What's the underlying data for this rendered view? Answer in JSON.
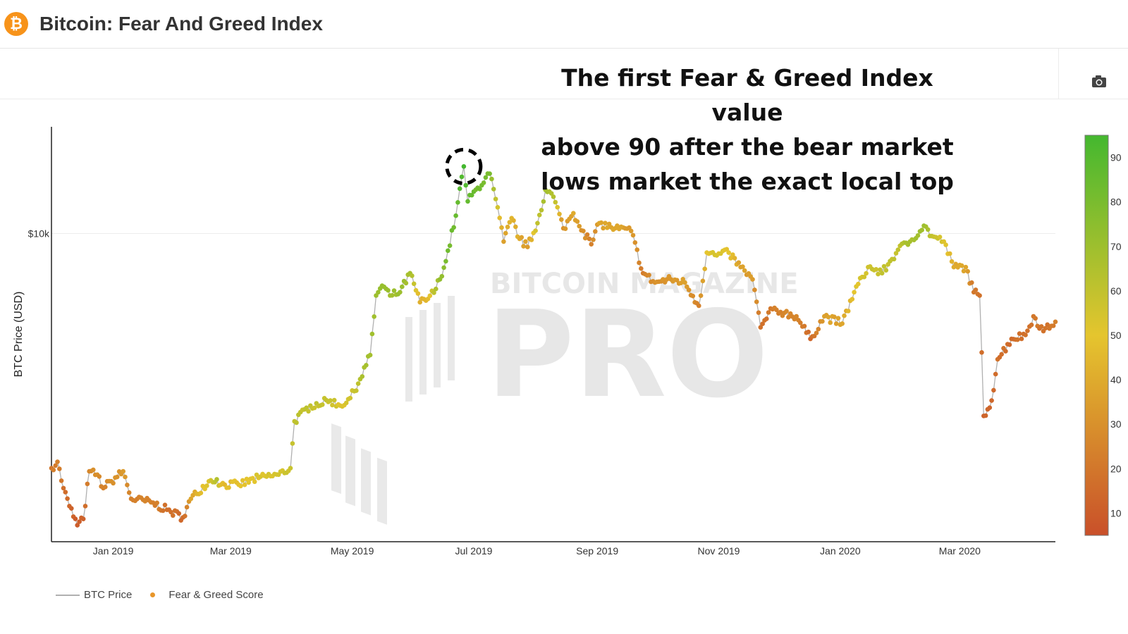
{
  "header": {
    "title": "Bitcoin: Fear And Greed Index",
    "logo_glyph": "₿",
    "logo_icon": "bitcoin-icon"
  },
  "toolbar": {
    "camera_icon": "camera-icon"
  },
  "annotation": {
    "lines": [
      "The first Fear & Greed Index value",
      "above 90 after the bear market",
      "lows market the exact local top"
    ]
  },
  "watermark": {
    "line1": "BITCOIN MAGAZINE",
    "line2": "PRO"
  },
  "legend": {
    "price_label": "BTC Price",
    "score_label": "Fear & Greed Score"
  },
  "colors": {
    "fear": "#c9502a",
    "neutral": "#e5c52e",
    "greed": "#44b82f",
    "price_line": "#b0b0b0"
  },
  "chart_data": {
    "type": "scatter",
    "title": "",
    "ylabel": "BTC Price (USD)",
    "y_scale": "log",
    "y_ticks": [
      {
        "value": 10000,
        "label": "$10k"
      }
    ],
    "x_ticks": [
      "Jan 2019",
      "Mar 2019",
      "May 2019",
      "Jul 2019",
      "Sep 2019",
      "Nov 2019",
      "Jan 2020",
      "Mar 2020"
    ],
    "x_range": [
      "2018-12-01",
      "2020-04-18"
    ],
    "y_range": [
      3100,
      15000
    ],
    "colorbar": {
      "min": 5,
      "max": 95,
      "ticks": [
        10,
        20,
        30,
        40,
        50,
        60,
        70,
        80,
        90
      ]
    },
    "highlight": {
      "date": "2019-06-26",
      "price": 12900,
      "score": 95
    },
    "series": [
      {
        "name": "BTC Price",
        "kind": "line"
      },
      {
        "name": "Fear & Greed Score",
        "kind": "markers",
        "anchors": [
          [
            "2018-12-01",
            4100,
            20
          ],
          [
            "2018-12-04",
            4200,
            24
          ],
          [
            "2018-12-07",
            3800,
            17
          ],
          [
            "2018-12-10",
            3550,
            14
          ],
          [
            "2018-12-14",
            3300,
            10
          ],
          [
            "2018-12-17",
            3380,
            12
          ],
          [
            "2018-12-20",
            4050,
            26
          ],
          [
            "2018-12-24",
            4000,
            30
          ],
          [
            "2018-12-27",
            3800,
            24
          ],
          [
            "2018-12-31",
            3900,
            30
          ],
          [
            "2019-01-06",
            4050,
            34
          ],
          [
            "2019-01-10",
            3650,
            24
          ],
          [
            "2019-01-20",
            3600,
            25
          ],
          [
            "2019-01-28",
            3500,
            18
          ],
          [
            "2019-02-05",
            3400,
            15
          ],
          [
            "2019-02-09",
            3650,
            38
          ],
          [
            "2019-02-18",
            3900,
            52
          ],
          [
            "2019-02-22",
            3930,
            64
          ],
          [
            "2019-02-24",
            3850,
            46
          ],
          [
            "2019-03-05",
            3850,
            48
          ],
          [
            "2019-03-15",
            3950,
            52
          ],
          [
            "2019-03-25",
            4000,
            55
          ],
          [
            "2019-03-31",
            4100,
            58
          ],
          [
            "2019-04-02",
            4900,
            60
          ],
          [
            "2019-04-10",
            5200,
            60
          ],
          [
            "2019-04-20",
            5300,
            58
          ],
          [
            "2019-04-25",
            5200,
            52
          ],
          [
            "2019-04-30",
            5350,
            56
          ],
          [
            "2019-05-05",
            5750,
            64
          ],
          [
            "2019-05-10",
            6300,
            68
          ],
          [
            "2019-05-13",
            7900,
            70
          ],
          [
            "2019-05-16",
            8200,
            72
          ],
          [
            "2019-05-20",
            7900,
            68
          ],
          [
            "2019-05-25",
            8000,
            70
          ],
          [
            "2019-05-30",
            8600,
            68
          ],
          [
            "2019-06-04",
            7700,
            42
          ],
          [
            "2019-06-08",
            7800,
            46
          ],
          [
            "2019-06-12",
            8100,
            66
          ],
          [
            "2019-06-17",
            9000,
            80
          ],
          [
            "2019-06-22",
            10700,
            85
          ],
          [
            "2019-06-26",
            12900,
            95
          ],
          [
            "2019-06-28",
            11300,
            86
          ],
          [
            "2019-07-03",
            11900,
            82
          ],
          [
            "2019-07-09",
            12550,
            80
          ],
          [
            "2019-07-12",
            11400,
            60
          ],
          [
            "2019-07-16",
            9700,
            36
          ],
          [
            "2019-07-20",
            10600,
            44
          ],
          [
            "2019-07-24",
            9800,
            40
          ],
          [
            "2019-07-28",
            9500,
            34
          ],
          [
            "2019-08-02",
            10400,
            60
          ],
          [
            "2019-08-06",
            11800,
            68
          ],
          [
            "2019-08-10",
            11500,
            64
          ],
          [
            "2019-08-15",
            10200,
            30
          ],
          [
            "2019-08-20",
            10800,
            40
          ],
          [
            "2019-08-25",
            10100,
            30
          ],
          [
            "2019-08-29",
            9600,
            24
          ],
          [
            "2019-09-02",
            10400,
            38
          ],
          [
            "2019-09-10",
            10200,
            38
          ],
          [
            "2019-09-18",
            10100,
            34
          ],
          [
            "2019-09-24",
            8600,
            22
          ],
          [
            "2019-09-30",
            8300,
            30
          ],
          [
            "2019-10-08",
            8400,
            32
          ],
          [
            "2019-10-15",
            8300,
            36
          ],
          [
            "2019-10-22",
            7600,
            24
          ],
          [
            "2019-10-26",
            9300,
            50
          ],
          [
            "2019-10-31",
            9200,
            54
          ],
          [
            "2019-11-06",
            9300,
            50
          ],
          [
            "2019-11-12",
            8800,
            36
          ],
          [
            "2019-11-18",
            8400,
            34
          ],
          [
            "2019-11-22",
            7000,
            18
          ],
          [
            "2019-11-28",
            7500,
            22
          ],
          [
            "2019-12-04",
            7400,
            26
          ],
          [
            "2019-12-10",
            7300,
            26
          ],
          [
            "2019-12-17",
            6700,
            14
          ],
          [
            "2019-12-24",
            7300,
            36
          ],
          [
            "2020-01-02",
            7100,
            38
          ],
          [
            "2020-01-08",
            8000,
            50
          ],
          [
            "2020-01-15",
            8800,
            56
          ],
          [
            "2020-01-22",
            8600,
            60
          ],
          [
            "2020-01-30",
            9400,
            60
          ],
          [
            "2020-02-05",
            9700,
            68
          ],
          [
            "2020-02-12",
            10300,
            70
          ],
          [
            "2020-02-16",
            9900,
            60
          ],
          [
            "2020-02-22",
            9700,
            52
          ],
          [
            "2020-02-27",
            8800,
            40
          ],
          [
            "2020-03-04",
            8800,
            38
          ],
          [
            "2020-03-08",
            8000,
            20
          ],
          [
            "2020-03-11",
            7900,
            18
          ],
          [
            "2020-03-13",
            5000,
            12
          ],
          [
            "2020-03-17",
            5300,
            14
          ],
          [
            "2020-03-20",
            6200,
            18
          ],
          [
            "2020-03-27",
            6700,
            16
          ],
          [
            "2020-04-03",
            6800,
            18
          ],
          [
            "2020-04-07",
            7300,
            20
          ],
          [
            "2020-04-12",
            6900,
            18
          ],
          [
            "2020-04-18",
            7150,
            24
          ]
        ]
      }
    ]
  }
}
